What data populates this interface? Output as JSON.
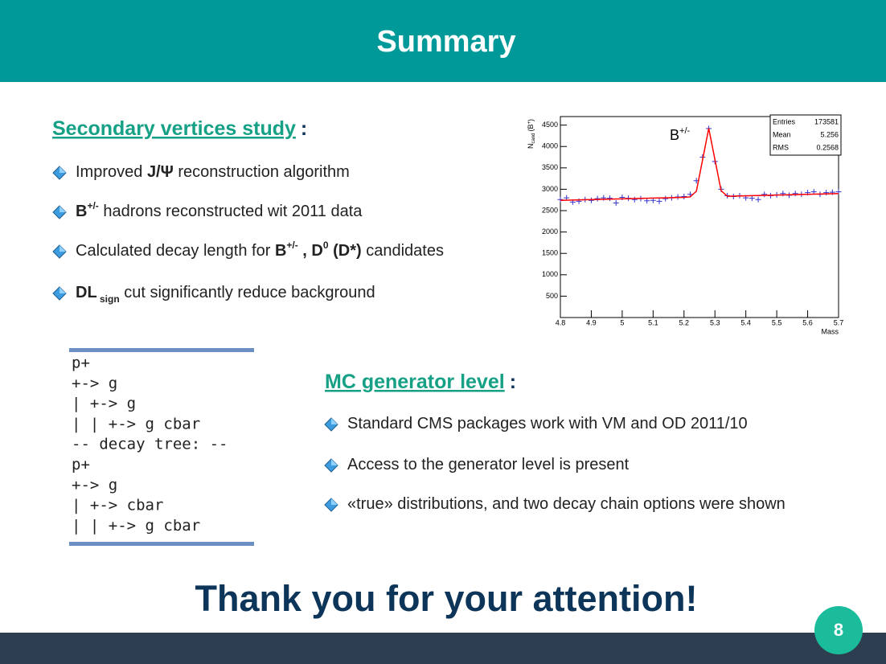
{
  "header": {
    "title": "Summary"
  },
  "section1": {
    "heading": "Secondary vertices study",
    "colon": ":",
    "bullets": [
      [
        {
          "text": "Improved "
        },
        {
          "text": "J/Ψ",
          "style": "b"
        },
        {
          "text": " reconstruction algorithm"
        }
      ],
      [
        {
          "text": "B",
          "style": "b"
        },
        {
          "text": "+/-",
          "style": "sup"
        },
        {
          "text": " hadrons reconstructed wit 2011 data"
        }
      ],
      [
        {
          "text": "Calculated decay length for "
        },
        {
          "text": "B",
          "style": "b"
        },
        {
          "text": "+/-",
          "style": "sup"
        },
        {
          "text": " , D",
          "style": "b"
        },
        {
          "text": "0",
          "style": "sup"
        },
        {
          "text": " (D*)",
          "style": "b"
        },
        {
          "text": " candidates"
        }
      ],
      [
        {
          "text": "DL",
          "style": "b"
        },
        {
          "text": " sign",
          "style": "sub"
        },
        {
          "text": " cut significantly reduce background"
        }
      ]
    ]
  },
  "section2": {
    "heading": "MC generator level",
    "colon": ":",
    "bullets": [
      [
        {
          "text": "Standard CMS packages work with VM and OD 2011/10"
        }
      ],
      [
        {
          "text": "Access to the generator level is present"
        }
      ],
      [
        {
          "text": "«true» distributions, and two decay chain options were shown"
        }
      ]
    ]
  },
  "code": {
    "lines": [
      "p+",
      "+-> g",
      "|   +-> g",
      "|   |   +-> g cbar",
      "-- decay tree: --",
      "p+",
      "+-> g",
      "|   +-> cbar",
      "|   |   +-> g cbar"
    ]
  },
  "chart_data": {
    "type": "histogram",
    "annotation": {
      "text": "B",
      "sup": "+/-"
    },
    "x_label": "Mass",
    "y_label": {
      "text": "N",
      "sub": "cand",
      "rest": "(B",
      "sup": "+",
      "end": ")"
    },
    "stats": [
      {
        "label": "Entries",
        "value": "173581"
      },
      {
        "label": "Mean",
        "value": "5.256"
      },
      {
        "label": "RMS",
        "value": "0.2568"
      }
    ],
    "x": [
      4.8,
      4.82,
      4.84,
      4.86,
      4.88,
      4.9,
      4.92,
      4.94,
      4.96,
      4.98,
      5.0,
      5.02,
      5.04,
      5.06,
      5.08,
      5.1,
      5.12,
      5.14,
      5.16,
      5.18,
      5.2,
      5.22,
      5.24,
      5.26,
      5.28,
      5.3,
      5.32,
      5.34,
      5.36,
      5.38,
      5.4,
      5.42,
      5.44,
      5.46,
      5.48,
      5.5,
      5.52,
      5.54,
      5.56,
      5.58,
      5.6,
      5.62,
      5.64,
      5.66,
      5.68,
      5.7
    ],
    "values": [
      2760,
      2800,
      2700,
      2720,
      2760,
      2740,
      2780,
      2800,
      2790,
      2680,
      2810,
      2790,
      2760,
      2780,
      2730,
      2740,
      2720,
      2780,
      2800,
      2820,
      2830,
      2880,
      3200,
      3750,
      4420,
      3650,
      3000,
      2850,
      2830,
      2850,
      2800,
      2790,
      2760,
      2880,
      2850,
      2870,
      2900,
      2860,
      2900,
      2880,
      2920,
      2940,
      2880,
      2920,
      2930,
      2940
    ],
    "fit_values": [
      2740,
      2744,
      2747,
      2751,
      2754,
      2758,
      2761,
      2765,
      2768,
      2772,
      2776,
      2779,
      2783,
      2786,
      2790,
      2793,
      2797,
      2800,
      2804,
      2808,
      2811,
      2821,
      2954,
      3686,
      4425,
      3693,
      2968,
      2836,
      2839,
      2843,
      2847,
      2850,
      2854,
      2857,
      2861,
      2864,
      2868,
      2872,
      2875,
      2879,
      2882,
      2886,
      2889,
      2893,
      2896,
      2900
    ],
    "color": "#3333cc",
    "fit_color": "#ff0000",
    "xlim": [
      4.8,
      5.7
    ],
    "ylim": [
      0,
      4700
    ],
    "xticks": [
      4.8,
      4.9,
      5,
      5.1,
      5.2,
      5.3,
      5.4,
      5.5,
      5.6,
      5.7
    ],
    "yticks": [
      0,
      500,
      1000,
      1500,
      2000,
      2500,
      3000,
      3500,
      4000,
      4500
    ]
  },
  "thanks": "Thank you for your attention!",
  "footer": {
    "page": "8"
  }
}
